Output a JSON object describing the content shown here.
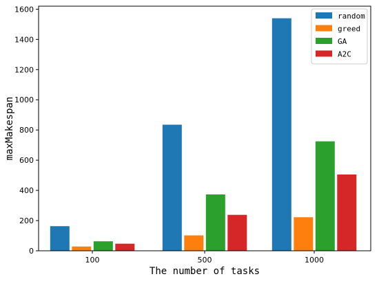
{
  "chart_data": {
    "type": "bar",
    "categories": [
      "100",
      "500",
      "1000"
    ],
    "series": [
      {
        "name": "random",
        "values": [
          163,
          835,
          1540
        ],
        "color": "#1f77b4"
      },
      {
        "name": "greed",
        "values": [
          28,
          102,
          222
        ],
        "color": "#ff7f0e"
      },
      {
        "name": "GA",
        "values": [
          63,
          373,
          725
        ],
        "color": "#2ca02c"
      },
      {
        "name": "A2C",
        "values": [
          47,
          238,
          505
        ],
        "color": "#d62728"
      }
    ],
    "xlabel": "The number of tasks",
    "ylabel": "maxMakespan",
    "ylim": [
      0,
      1620
    ],
    "yticks": [
      "0",
      "200",
      "400",
      "600",
      "800",
      "1000",
      "1200",
      "1400",
      "1600"
    ],
    "legend_position": "top-right",
    "grid": false
  }
}
